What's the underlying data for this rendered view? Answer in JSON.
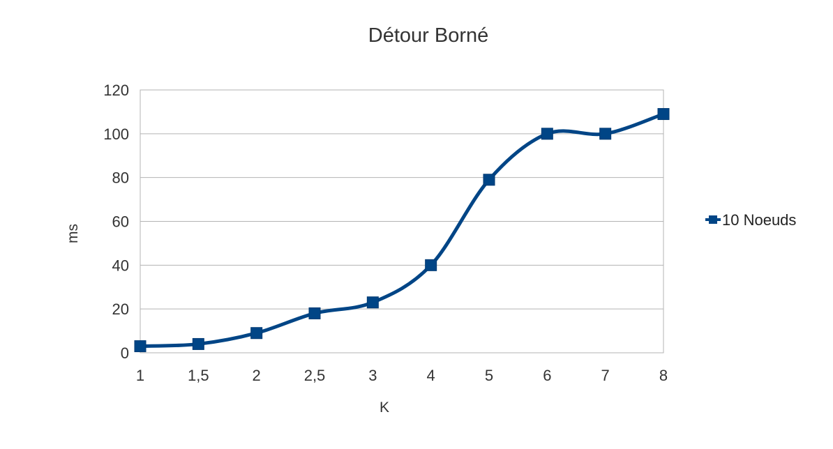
{
  "chart_data": {
    "type": "line",
    "title": "Détour Borné",
    "xlabel": "K",
    "ylabel": "ms",
    "categories": [
      "1",
      "1,5",
      "2",
      "2,5",
      "3",
      "4",
      "5",
      "6",
      "7",
      "8"
    ],
    "ylim": [
      0,
      120
    ],
    "yticks": [
      "0",
      "20",
      "40",
      "60",
      "80",
      "100",
      "120"
    ],
    "grid": true,
    "smooth": true,
    "legend_position": "right",
    "series": [
      {
        "name": "10 Noeuds",
        "color": "#004586",
        "marker": "square",
        "values": [
          3,
          4,
          9,
          18,
          23,
          40,
          79,
          100,
          100,
          109
        ]
      }
    ]
  }
}
